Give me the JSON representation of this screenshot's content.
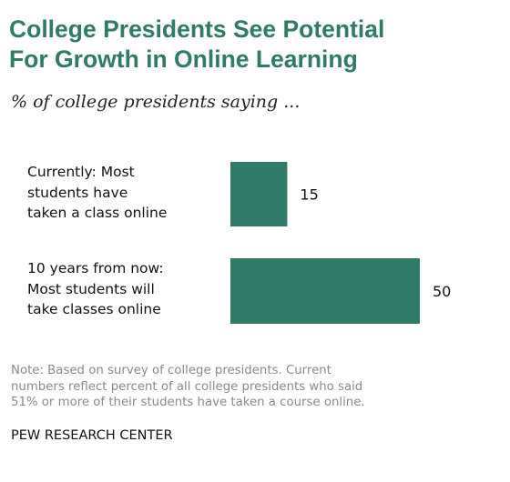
{
  "title_lines": [
    "College Presidents See Potential",
    "For Growth in Online Learning"
  ],
  "subtitle": "% of college presidents saying ...",
  "chart_data": {
    "type": "bar",
    "orientation": "horizontal",
    "categories": [
      [
        "Currently: Most",
        "students have",
        "taken a class online"
      ],
      [
        "10 years from now:",
        "Most students will",
        "take classes online"
      ]
    ],
    "values": [
      15,
      50
    ],
    "data_labels": [
      "15",
      "50"
    ],
    "xlim": [
      0,
      50
    ],
    "bar_color": "#2f7a69",
    "grid": false,
    "legend": "none"
  },
  "note_lines": [
    "Note: Based on survey of college presidents. Current",
    "numbers reflect percent of all college presidents who said",
    "51% or more of their students have taken a course online."
  ],
  "source": "PEW RESEARCH CENTER"
}
